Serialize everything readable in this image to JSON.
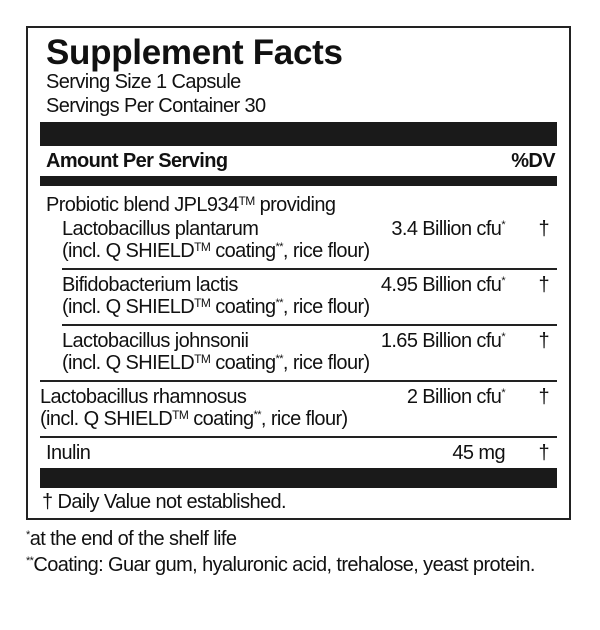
{
  "title": "Supplement Facts",
  "serving_size": "Serving Size 1 Capsule",
  "servings_per_container": "Servings Per Container 30",
  "header": {
    "amount": "Amount Per Serving",
    "dv": "%DV"
  },
  "blend": {
    "name": "Probiotic blend JPL934",
    "tm": "TM",
    "suffix": " providing"
  },
  "items": [
    {
      "name": "Lactobacillus plantarum",
      "amount": "3.4 Billion cfu",
      "amount_mark": "*",
      "dv": "†",
      "sub": "(incl. Q SHIELD",
      "sub_tm": "TM",
      "sub_mid": " coating",
      "sub_mark": "**",
      "sub_end": ", rice flour)"
    },
    {
      "name": "Bifidobacterium lactis",
      "amount": "4.95 Billion cfu",
      "amount_mark": "*",
      "dv": "†",
      "sub": "(incl. Q SHIELD",
      "sub_tm": "TM",
      "sub_mid": " coating",
      "sub_mark": "**",
      "sub_end": ", rice flour)"
    },
    {
      "name": "Lactobacillus johnsonii",
      "amount": "1.65 Billion cfu",
      "amount_mark": "*",
      "dv": "†",
      "sub": "(incl. Q SHIELD",
      "sub_tm": "TM",
      "sub_mid": " coating",
      "sub_mark": "**",
      "sub_end": ", rice flour)"
    },
    {
      "name": "Lactobacillus rhamnosus",
      "amount": "2 Billion cfu",
      "amount_mark": "*",
      "dv": "†",
      "sub": "(incl. Q SHIELD",
      "sub_tm": "TM",
      "sub_mid": " coating",
      "sub_mark": "**",
      "sub_end": ", rice flour)"
    },
    {
      "name": "Inulin",
      "amount": "45 mg",
      "dv": "†"
    }
  ],
  "dv_note": "† Daily Value not established.",
  "footnotes": [
    {
      "mark": "*",
      "text": "at the end of the shelf life"
    },
    {
      "mark": "**",
      "text": "Coating: Guar gum, hyaluronic acid, trehalose, yeast protein."
    }
  ]
}
